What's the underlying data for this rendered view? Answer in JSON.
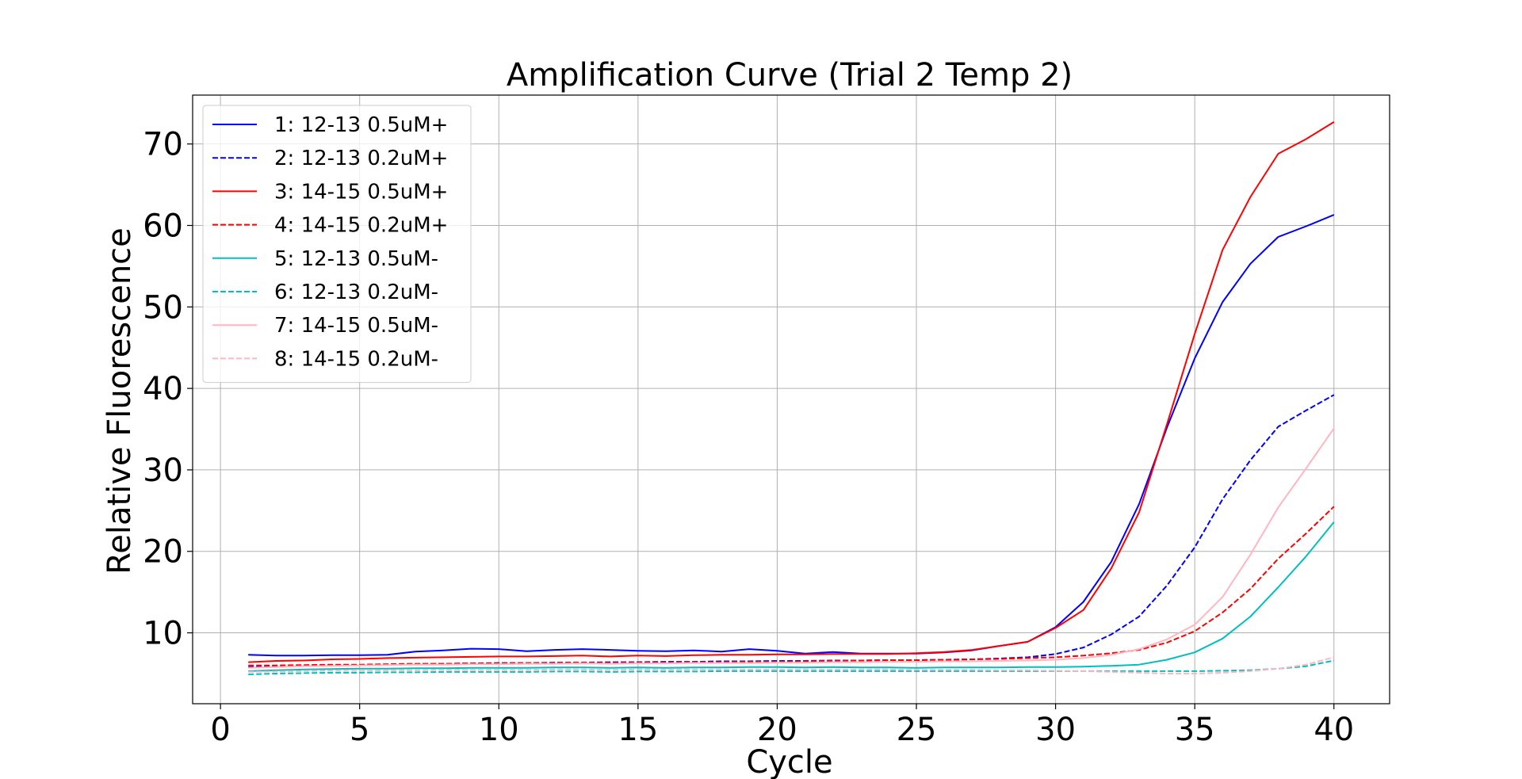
{
  "chart_data": {
    "type": "line",
    "title": "Amplification Curve (Trial 2 Temp 2)",
    "xlabel": "Cycle",
    "ylabel": "Relative Fluorescence",
    "xlim": [
      -1,
      42
    ],
    "ylim": [
      1.3,
      76.0
    ],
    "xticks": [
      0,
      5,
      10,
      15,
      20,
      25,
      30,
      35,
      40
    ],
    "yticks": [
      10,
      20,
      30,
      40,
      50,
      60,
      70
    ],
    "grid": true,
    "legend_position": "top-left",
    "x": [
      1,
      2,
      3,
      4,
      5,
      6,
      7,
      8,
      9,
      10,
      11,
      12,
      13,
      14,
      15,
      16,
      17,
      18,
      19,
      20,
      21,
      22,
      23,
      24,
      25,
      26,
      27,
      28,
      29,
      30,
      31,
      32,
      33,
      34,
      35,
      36,
      37,
      38,
      39,
      40
    ],
    "series": [
      {
        "name": "1: 12-13 0.5uM+",
        "color": "#0000ff",
        "dash": "solid",
        "values": [
          7.3,
          7.2,
          7.2,
          7.25,
          7.25,
          7.3,
          7.7,
          7.85,
          8.05,
          8.0,
          7.75,
          7.9,
          8.0,
          7.9,
          7.8,
          7.75,
          7.85,
          7.7,
          8.0,
          7.8,
          7.45,
          7.65,
          7.45,
          7.45,
          7.45,
          7.6,
          7.85,
          8.4,
          8.9,
          10.7,
          13.8,
          18.7,
          25.8,
          35.2,
          43.7,
          50.6,
          55.3,
          58.6,
          59.9,
          61.3
        ]
      },
      {
        "name": "2: 12-13 0.2uM+",
        "color": "#0000ff",
        "dash": "dashed",
        "values": [
          5.8,
          5.9,
          5.95,
          6.0,
          6.05,
          6.1,
          6.15,
          6.2,
          6.25,
          6.3,
          6.3,
          6.35,
          6.35,
          6.4,
          6.4,
          6.45,
          6.45,
          6.5,
          6.5,
          6.55,
          6.55,
          6.6,
          6.6,
          6.65,
          6.65,
          6.7,
          6.75,
          6.85,
          7.0,
          7.4,
          8.2,
          9.8,
          12.0,
          15.8,
          20.5,
          26.4,
          31.2,
          35.3,
          37.3,
          39.2
        ]
      },
      {
        "name": "3: 14-15 0.5uM+",
        "color": "#ff0000",
        "dash": "solid",
        "values": [
          6.4,
          6.55,
          6.6,
          6.75,
          6.8,
          6.9,
          6.95,
          7.0,
          7.05,
          7.1,
          7.1,
          7.15,
          7.2,
          7.1,
          7.2,
          7.15,
          7.25,
          7.3,
          7.3,
          7.35,
          7.35,
          7.4,
          7.4,
          7.4,
          7.5,
          7.65,
          7.9,
          8.4,
          8.9,
          10.6,
          12.8,
          17.9,
          24.8,
          35.6,
          46.7,
          57.0,
          63.5,
          68.8,
          70.6,
          72.7
        ]
      },
      {
        "name": "4: 14-15 0.2uM+",
        "color": "#ff0000",
        "dash": "dashed",
        "values": [
          6.0,
          6.0,
          6.05,
          6.1,
          6.1,
          6.15,
          6.2,
          6.2,
          6.25,
          6.25,
          6.3,
          6.3,
          6.35,
          6.3,
          6.35,
          6.35,
          6.4,
          6.4,
          6.45,
          6.45,
          6.5,
          6.55,
          6.6,
          6.65,
          6.65,
          6.7,
          6.75,
          6.8,
          6.9,
          7.0,
          7.2,
          7.5,
          7.9,
          8.8,
          10.2,
          12.5,
          15.4,
          19.1,
          22.2,
          25.5
        ]
      },
      {
        "name": "5: 12-13 0.5uM-",
        "color": "#00bfbf",
        "dash": "solid",
        "values": [
          5.3,
          5.4,
          5.5,
          5.55,
          5.6,
          5.6,
          5.65,
          5.65,
          5.7,
          5.7,
          5.7,
          5.75,
          5.75,
          5.7,
          5.75,
          5.7,
          5.75,
          5.75,
          5.8,
          5.8,
          5.75,
          5.8,
          5.75,
          5.75,
          5.7,
          5.75,
          5.75,
          5.75,
          5.8,
          5.8,
          5.85,
          5.95,
          6.1,
          6.7,
          7.6,
          9.3,
          12.0,
          15.6,
          19.4,
          23.6
        ]
      },
      {
        "name": "6: 12-13 0.2uM-",
        "color": "#00bfbf",
        "dash": "dashed",
        "values": [
          4.9,
          5.0,
          5.05,
          5.1,
          5.1,
          5.15,
          5.15,
          5.2,
          5.2,
          5.2,
          5.2,
          5.25,
          5.25,
          5.2,
          5.25,
          5.25,
          5.25,
          5.3,
          5.3,
          5.3,
          5.3,
          5.3,
          5.3,
          5.3,
          5.3,
          5.3,
          5.3,
          5.3,
          5.3,
          5.3,
          5.3,
          5.3,
          5.3,
          5.3,
          5.3,
          5.35,
          5.4,
          5.6,
          5.9,
          6.6
        ]
      },
      {
        "name": "7: 14-15 0.5uM-",
        "color": "#ffb6c1",
        "dash": "solid",
        "values": [
          5.7,
          5.8,
          5.9,
          5.95,
          6.0,
          6.05,
          6.1,
          6.1,
          6.15,
          6.15,
          6.2,
          6.2,
          6.25,
          6.2,
          6.25,
          6.25,
          6.3,
          6.3,
          6.3,
          6.35,
          6.35,
          6.4,
          6.4,
          6.45,
          6.45,
          6.5,
          6.5,
          6.55,
          6.6,
          6.7,
          6.9,
          7.3,
          8.0,
          9.2,
          11.0,
          14.4,
          19.6,
          25.4,
          30.2,
          35.1
        ]
      },
      {
        "name": "8: 14-15 0.2uM-",
        "color": "#ffb6c1",
        "dash": "dashed",
        "values": [
          5.2,
          5.25,
          5.3,
          5.35,
          5.35,
          5.4,
          5.4,
          5.45,
          5.45,
          5.45,
          5.45,
          5.5,
          5.5,
          5.45,
          5.5,
          5.5,
          5.5,
          5.5,
          5.5,
          5.5,
          5.5,
          5.5,
          5.5,
          5.5,
          5.45,
          5.45,
          5.45,
          5.4,
          5.4,
          5.35,
          5.3,
          5.2,
          5.1,
          5.0,
          5.0,
          5.1,
          5.3,
          5.6,
          6.1,
          7.0
        ]
      }
    ]
  }
}
